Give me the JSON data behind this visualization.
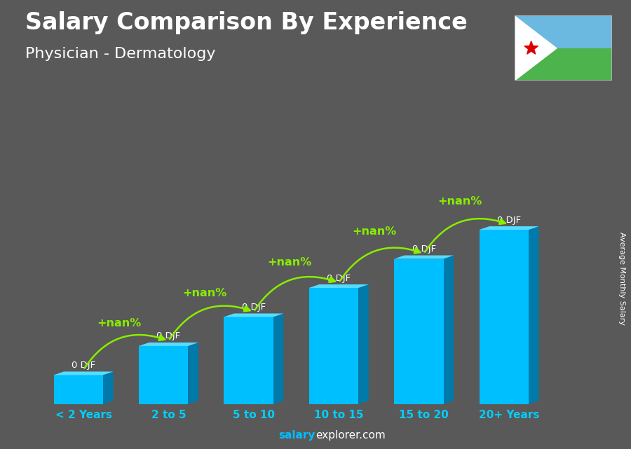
{
  "title": "Salary Comparison By Experience",
  "subtitle": "Physician - Dermatology",
  "categories": [
    "< 2 Years",
    "2 to 5",
    "5 to 10",
    "10 to 15",
    "15 to 20",
    "20+ Years"
  ],
  "values": [
    1,
    2,
    3,
    4,
    5,
    6
  ],
  "bar_color_face": "#00BFFF",
  "bar_color_side": "#007AAA",
  "bar_color_top": "#55DDFF",
  "background_color": "#595959",
  "title_color": "#FFFFFF",
  "subtitle_color": "#FFFFFF",
  "xlabel_color": "#00CFFF",
  "ylabel_text": "Average Monthly Salary",
  "ylabel_color": "#FFFFFF",
  "value_labels": [
    "0 DJF",
    "0 DJF",
    "0 DJF",
    "0 DJF",
    "0 DJF",
    "0 DJF"
  ],
  "pct_labels": [
    "+nan%",
    "+nan%",
    "+nan%",
    "+nan%",
    "+nan%"
  ],
  "footer_salary": "salary",
  "footer_explorer": "explorer",
  "title_fontsize": 24,
  "subtitle_fontsize": 16,
  "bar_width": 0.58,
  "ylim": [
    0,
    8.5
  ],
  "arrow_color": "#88EE00",
  "flag_blue": "#6BB8E0",
  "flag_green": "#4DB34D",
  "flag_white": "#FFFFFF",
  "flag_red": "#DD0000"
}
